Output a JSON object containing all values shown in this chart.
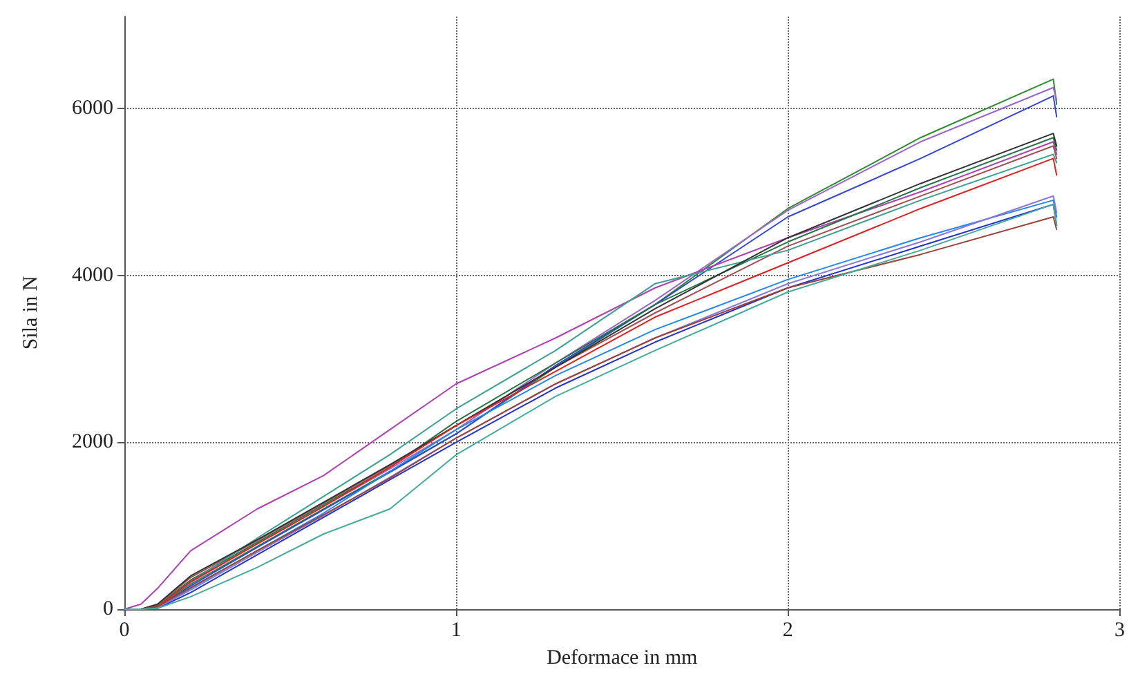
{
  "chart_data": {
    "type": "line",
    "xlabel": "Deformace in mm",
    "ylabel": "Sila in N",
    "xlim": [
      0,
      3
    ],
    "xticks": [
      0,
      1,
      2,
      3
    ],
    "ylim": [
      0,
      7100
    ],
    "yticks": [
      0,
      2000,
      4000,
      6000
    ],
    "grid": true,
    "marker": "none",
    "line_style": "solid",
    "x": [
      0,
      0.05,
      0.1,
      0.2,
      0.4,
      0.6,
      0.8,
      1.0,
      1.3,
      1.6,
      2.0,
      2.4,
      2.8,
      2.81
    ],
    "series": [
      {
        "color": "#2e8b2e",
        "values": [
          0,
          0,
          30,
          300,
          750,
          1200,
          1650,
          2100,
          2900,
          3650,
          4800,
          5650,
          6350,
          6050
        ]
      },
      {
        "color": "#9966cc",
        "values": [
          0,
          0,
          40,
          320,
          780,
          1230,
          1680,
          2150,
          2950,
          3700,
          4780,
          5600,
          6250,
          6100
        ]
      },
      {
        "color": "#3344dd",
        "values": [
          0,
          0,
          20,
          280,
          740,
          1190,
          1640,
          2100,
          2920,
          3650,
          4700,
          5400,
          6150,
          5900
        ]
      },
      {
        "color": "#b040b0",
        "values": [
          0,
          60,
          250,
          700,
          1200,
          1600,
          2150,
          2700,
          3250,
          3850,
          4450,
          5000,
          5600,
          5450
        ]
      },
      {
        "color": "#227744",
        "values": [
          0,
          0,
          40,
          350,
          800,
          1250,
          1700,
          2250,
          2950,
          3650,
          4400,
          5050,
          5650,
          5500
        ]
      },
      {
        "color": "#a05050",
        "values": [
          0,
          0,
          50,
          380,
          820,
          1270,
          1720,
          2200,
          2900,
          3550,
          4350,
          4950,
          5550,
          5400
        ]
      },
      {
        "color": "#3aa090",
        "values": [
          0,
          0,
          30,
          330,
          850,
          1350,
          1850,
          2400,
          3100,
          3900,
          4300,
          4900,
          5450,
          5350
        ]
      },
      {
        "color": "#333333",
        "values": [
          0,
          0,
          60,
          400,
          830,
          1280,
          1730,
          2200,
          2900,
          3600,
          4450,
          5100,
          5700,
          5550
        ]
      },
      {
        "color": "#e02020",
        "values": [
          0,
          0,
          30,
          330,
          780,
          1230,
          1700,
          2200,
          2850,
          3500,
          4150,
          4800,
          5400,
          5200
        ]
      },
      {
        "color": "#2288ee",
        "values": [
          0,
          0,
          20,
          250,
          700,
          1150,
          1650,
          2150,
          2800,
          3350,
          3950,
          4450,
          4900,
          4700
        ]
      },
      {
        "color": "#2233cc",
        "values": [
          0,
          0,
          10,
          200,
          650,
          1100,
          1550,
          2000,
          2650,
          3200,
          3850,
          4350,
          4850,
          4600
        ]
      },
      {
        "color": "#8877dd",
        "values": [
          0,
          0,
          20,
          230,
          680,
          1120,
          1580,
          2050,
          2700,
          3250,
          3900,
          4400,
          4950,
          4750
        ]
      },
      {
        "color": "#994433",
        "values": [
          0,
          0,
          30,
          260,
          700,
          1130,
          1570,
          2050,
          2700,
          3250,
          3850,
          4250,
          4700,
          4550
        ]
      },
      {
        "color": "#44aa99",
        "values": [
          0,
          0,
          10,
          150,
          500,
          900,
          1200,
          1850,
          2550,
          3100,
          3800,
          4300,
          4850,
          4600
        ]
      }
    ]
  }
}
